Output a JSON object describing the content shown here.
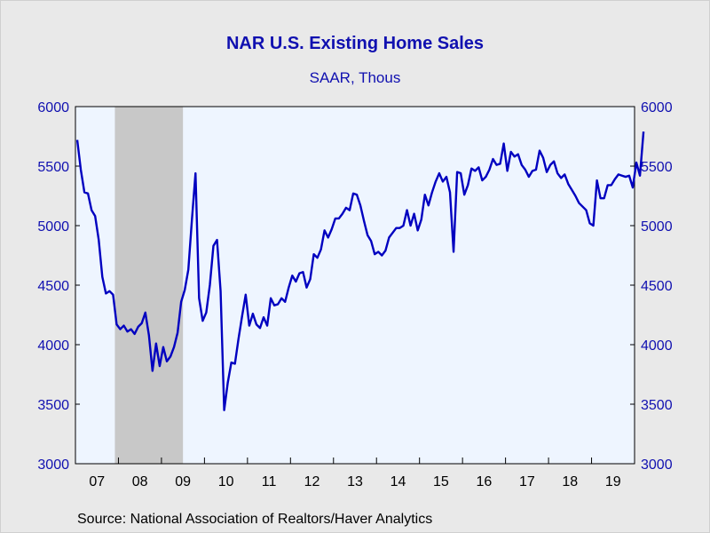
{
  "title": "NAR U.S. Existing Home Sales",
  "subtitle": "SAAR, Thous",
  "source": "Source:  National Association of Realtors/Haver Analytics",
  "colors": {
    "line": "#0000c0",
    "plot_bg": "#eef5ff",
    "recession": "#c8c8c8",
    "tick_text": "#1010b0",
    "axis": "#000000"
  },
  "chart_data": {
    "type": "line",
    "title": "NAR U.S. Existing Home Sales",
    "subtitle": "SAAR, Thous",
    "xlabel": "",
    "ylabel": "",
    "ylim": [
      3000,
      6000
    ],
    "y_ticks": [
      3000,
      3500,
      4000,
      4500,
      5000,
      5500,
      6000
    ],
    "y_tick_labels_left": [
      "3000",
      "3500",
      "4000",
      "4500",
      "5000",
      "5500",
      "6000"
    ],
    "y_tick_labels_right": [
      "3000",
      "3500",
      "4000",
      "4500",
      "5000",
      "5500",
      "6000"
    ],
    "x_tick_labels": [
      "07",
      "08",
      "09",
      "10",
      "11",
      "12",
      "13",
      "14",
      "15",
      "16",
      "17",
      "18",
      "19"
    ],
    "x_range": [
      "2007-01",
      "2019-12"
    ],
    "grid": false,
    "shaded_region": {
      "label": "recession",
      "start": "2007-12",
      "end": "2009-06"
    },
    "series": [
      {
        "start": "2007-01",
        "frequency": "monthly",
        "values": [
          5720,
          5470,
          5280,
          5270,
          5130,
          5080,
          4880,
          4570,
          4430,
          4450,
          4420,
          4170,
          4130,
          4160,
          4110,
          4130,
          4090,
          4150,
          4180,
          4270,
          4080,
          3780,
          4010,
          3820,
          3980,
          3860,
          3900,
          3980,
          4100,
          4360,
          4460,
          4630,
          5050,
          5440,
          4390,
          4200,
          4270,
          4500,
          4830,
          4880,
          4450,
          3450,
          3680,
          3850,
          3840,
          4050,
          4240,
          4420,
          4160,
          4260,
          4170,
          4140,
          4230,
          4160,
          4390,
          4330,
          4340,
          4390,
          4360,
          4480,
          4580,
          4530,
          4600,
          4610,
          4480,
          4550,
          4760,
          4730,
          4800,
          4960,
          4900,
          4970,
          5060,
          5060,
          5100,
          5150,
          5130,
          5270,
          5260,
          5170,
          5040,
          4920,
          4870,
          4760,
          4780,
          4750,
          4790,
          4900,
          4940,
          4980,
          4980,
          5000,
          5130,
          5000,
          5100,
          4960,
          5050,
          5260,
          5170,
          5280,
          5370,
          5440,
          5370,
          5410,
          5280,
          4780,
          5450,
          5440,
          5260,
          5340,
          5480,
          5460,
          5490,
          5380,
          5410,
          5470,
          5560,
          5510,
          5520,
          5690,
          5460,
          5620,
          5580,
          5600,
          5510,
          5470,
          5410,
          5460,
          5470,
          5630,
          5570,
          5450,
          5510,
          5540,
          5440,
          5400,
          5430,
          5350,
          5300,
          5250,
          5190,
          5160,
          5130,
          5020,
          5000,
          5380,
          5230,
          5230,
          5340,
          5340,
          5390,
          5430,
          5420,
          5410,
          5420,
          5320,
          5530,
          5420,
          5790
        ]
      }
    ]
  }
}
